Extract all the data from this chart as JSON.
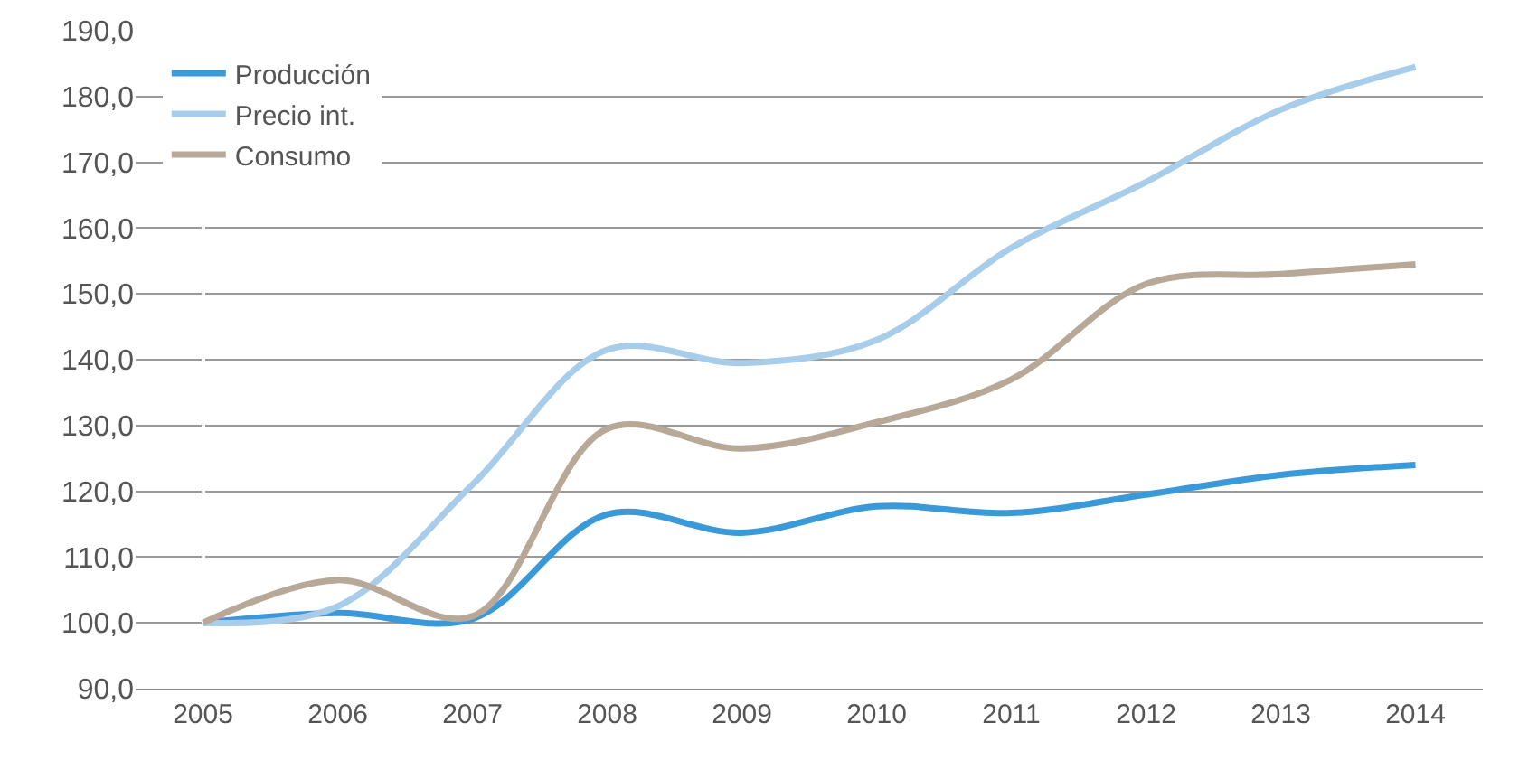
{
  "chart_data": {
    "type": "line",
    "categories": [
      "2005",
      "2006",
      "2007",
      "2008",
      "2009",
      "2010",
      "2011",
      "2012",
      "2013",
      "2014"
    ],
    "series": [
      {
        "name": "Producción",
        "color": "#3a9ad9",
        "values": [
          100,
          101.5,
          100.6,
          116.5,
          113.7,
          117.7,
          116.7,
          119.5,
          122.5,
          124
        ]
      },
      {
        "name": "Precio int.",
        "color": "#a8cdea",
        "values": [
          100,
          102.5,
          121,
          141.5,
          139.5,
          143,
          157,
          167,
          178,
          184.5
        ]
      },
      {
        "name": "Consumo",
        "color": "#b8a898",
        "values": [
          100,
          106.5,
          101,
          129.5,
          126.5,
          130.5,
          137,
          151.5,
          153,
          154.5
        ]
      }
    ],
    "ylim": [
      90,
      190
    ],
    "yticks": [
      {
        "value": 90,
        "label": "90,0"
      },
      {
        "value": 100,
        "label": "100,0"
      },
      {
        "value": 110,
        "label": "110,0"
      },
      {
        "value": 120,
        "label": "120,0"
      },
      {
        "value": 130,
        "label": "130,0"
      },
      {
        "value": 140,
        "label": "140,0"
      },
      {
        "value": 150,
        "label": "150,0"
      },
      {
        "value": 160,
        "label": "160,0"
      },
      {
        "value": 170,
        "label": "170,0"
      },
      {
        "value": 180,
        "label": "180,0"
      },
      {
        "value": 190,
        "label": "190,0"
      }
    ],
    "grid": "y",
    "legend": "top left",
    "marker": "none",
    "line_style": "solid"
  }
}
